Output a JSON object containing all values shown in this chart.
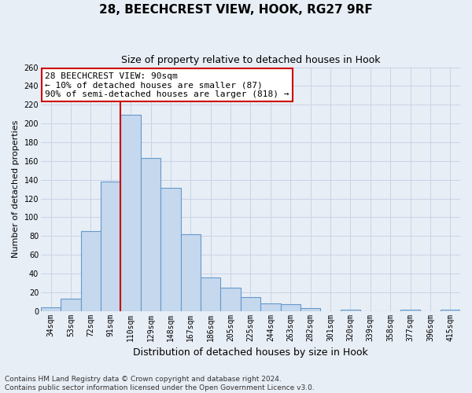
{
  "title": "28, BEECHCREST VIEW, HOOK, RG27 9RF",
  "subtitle": "Size of property relative to detached houses in Hook",
  "xlabel": "Distribution of detached houses by size in Hook",
  "ylabel": "Number of detached properties",
  "bin_labels": [
    "34sqm",
    "53sqm",
    "72sqm",
    "91sqm",
    "110sqm",
    "129sqm",
    "148sqm",
    "167sqm",
    "186sqm",
    "205sqm",
    "225sqm",
    "244sqm",
    "263sqm",
    "282sqm",
    "301sqm",
    "320sqm",
    "339sqm",
    "358sqm",
    "377sqm",
    "396sqm",
    "415sqm"
  ],
  "bar_heights": [
    4,
    13,
    85,
    138,
    209,
    163,
    131,
    82,
    36,
    25,
    15,
    8,
    7,
    3,
    0,
    1,
    0,
    0,
    1,
    0,
    1
  ],
  "bar_color": "#c5d8ed",
  "bar_edge_color": "#6699cc",
  "vline_color": "#cc0000",
  "annotation_text": "28 BEECHCREST VIEW: 90sqm\n← 10% of detached houses are smaller (87)\n90% of semi-detached houses are larger (818) →",
  "annotation_box_color": "#ffffff",
  "annotation_box_edge_color": "#cc0000",
  "ylim": [
    0,
    260
  ],
  "yticks": [
    0,
    20,
    40,
    60,
    80,
    100,
    120,
    140,
    160,
    180,
    200,
    220,
    240,
    260
  ],
  "footer_line1": "Contains HM Land Registry data © Crown copyright and database right 2024.",
  "footer_line2": "Contains public sector information licensed under the Open Government Licence v3.0.",
  "grid_color": "#c8d4e4",
  "background_color": "#e8eef6",
  "title_fontsize": 11,
  "subtitle_fontsize": 9,
  "ylabel_fontsize": 8,
  "xlabel_fontsize": 9,
  "tick_fontsize": 7,
  "annotation_fontsize": 8,
  "footer_fontsize": 6.5
}
